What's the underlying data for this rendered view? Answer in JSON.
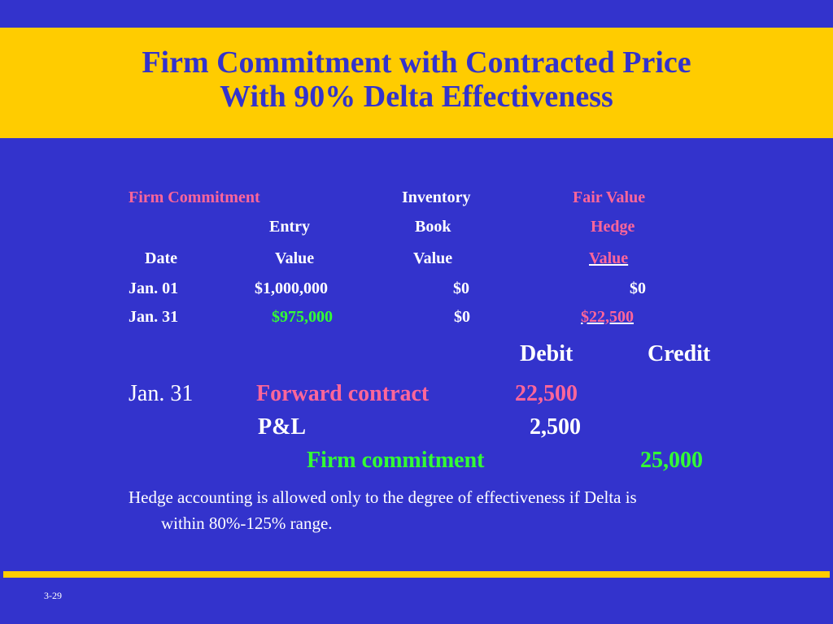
{
  "slide": {
    "title_line1": "Firm Commitment with Contracted Price",
    "title_line2": "With 90% Delta Effectiveness",
    "page_number": "3-29"
  },
  "table": {
    "header1": [
      "Firm Commitment",
      "Inventory",
      "Fair Value"
    ],
    "header2": [
      "Entry",
      "Book",
      "Hedge"
    ],
    "header3": [
      "Date",
      "Value",
      "Value",
      "Value"
    ],
    "rows": [
      [
        "Jan. 01",
        "$1,000,000",
        "$0",
        "$0"
      ],
      [
        "Jan. 31",
        "$975,000",
        "$0",
        "$22,500"
      ]
    ]
  },
  "journal": {
    "debit_header": "Debit",
    "credit_header": "Credit",
    "date": "Jan. 31",
    "entries": [
      {
        "account": "Forward contract",
        "debit": "22,500",
        "credit": ""
      },
      {
        "account": "P&L",
        "debit": "2,500",
        "credit": ""
      },
      {
        "account": "Firm commitment",
        "debit": "",
        "credit": "25,000"
      }
    ]
  },
  "note": {
    "line1": "Hedge accounting is allowed only to the degree of effectiveness if Delta  is",
    "line2": "within 80%-125% range."
  },
  "colors": {
    "background": "#3333cc",
    "title_band": "#ffcc00",
    "pink": "#ff6699",
    "green": "#33ff33"
  }
}
